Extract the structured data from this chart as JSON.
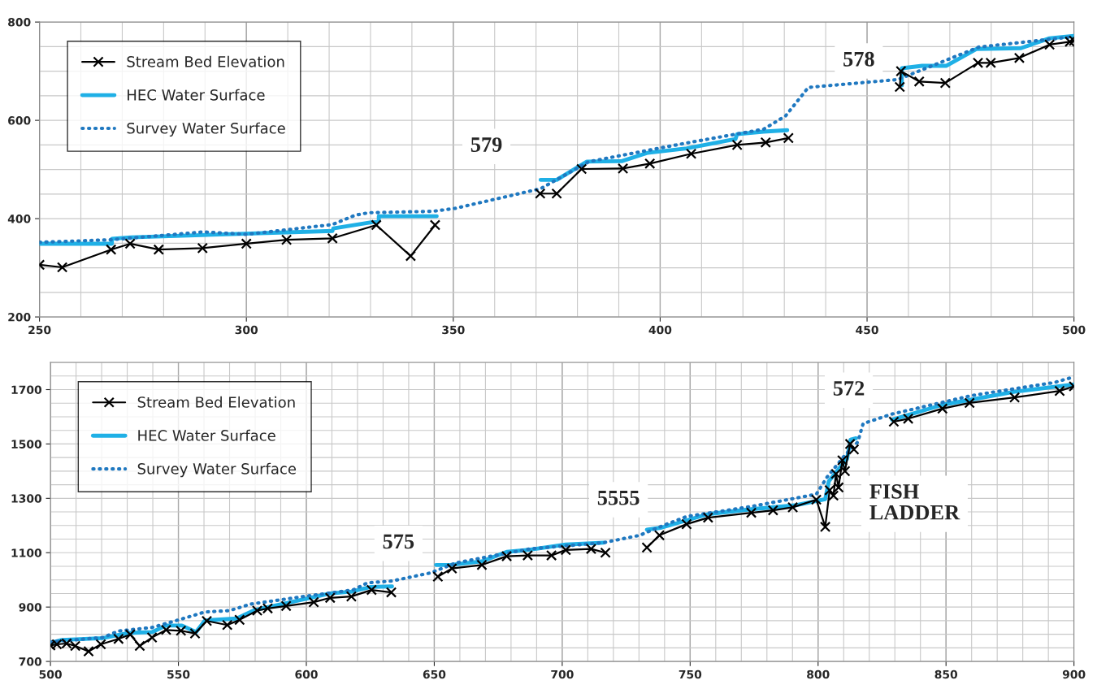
{
  "chart_data": [
    {
      "type": "line",
      "xlim": [
        250,
        500
      ],
      "xticks": [
        250,
        300,
        350,
        400,
        450,
        500
      ],
      "ylim": [
        200,
        800
      ],
      "yticks": [
        200,
        400,
        600,
        800
      ],
      "grid": true,
      "legend": "top left",
      "series": [
        {
          "name": "Stream Bed Elevation",
          "color": "#000000",
          "marker": "cross",
          "line_style": "solid",
          "x": [
            250,
            255.5,
            267.3,
            271.9,
            278.8,
            289.4,
            300,
            309.7,
            320.8,
            331.4,
            339.7,
            345.6,
            358,
            371,
            375,
            381,
            391,
            397.5,
            407.5,
            418.6,
            425.5,
            431,
            445,
            457.9,
            458.2,
            462.6,
            468.9,
            476.8,
            479.9,
            486.8,
            494.1,
            499,
            500
          ],
          "values": [
            306,
            301,
            337,
            349,
            337,
            340,
            349,
            357,
            360,
            387,
            324,
            387,
            null,
            451,
            451,
            501,
            502,
            512,
            532,
            550,
            555,
            564,
            null,
            668,
            700,
            679,
            676,
            717,
            717,
            727,
            754,
            760,
            762
          ]
        },
        {
          "name": "HEC Water Surface",
          "color": "#1fb0e6",
          "marker": "none",
          "line_style": "solid",
          "x": [
            250,
            267.5,
            267.5,
            272,
            320.8,
            321,
            332,
            332,
            346,
            358,
            371.1,
            375,
            382.3,
            390.7,
            397,
            406.4,
            418.2,
            418.6,
            425,
            430.7,
            445,
            458.4,
            458.4,
            463.3,
            469.2,
            476.4,
            487.2,
            494.1,
            500
          ],
          "values": [
            349,
            349,
            359,
            362,
            375,
            380,
            395,
            405,
            405,
            null,
            479,
            479,
            516,
            517,
            534,
            543,
            562,
            572,
            577,
            580,
            null,
            671,
            706,
            711,
            711,
            745,
            747,
            767,
            772
          ]
        },
        {
          "name": "Survey Water Surface",
          "color": "#1f78c0",
          "marker": "none",
          "line_style": "dotted",
          "x": [
            250,
            267.3,
            289.6,
            300,
            320.8,
            326.3,
            329.5,
            345.2,
            350.5,
            371.1,
            382.8,
            406.4,
            425,
            430.3,
            435.8,
            457.4,
            477,
            499.6
          ],
          "values": [
            352,
            357,
            373,
            368,
            388,
            407,
            412,
            415,
            421,
            461,
            516,
            554,
            582,
            609,
            667,
            683,
            749,
            770
          ]
        }
      ],
      "annotations": [
        "579",
        "578"
      ]
    },
    {
      "type": "line",
      "xlim": [
        500,
        900
      ],
      "xticks": [
        500,
        550,
        600,
        650,
        700,
        750,
        800,
        850,
        900
      ],
      "ylim": [
        700,
        1800
      ],
      "yticks": [
        700,
        900,
        1100,
        1300,
        1500,
        1700
      ],
      "grid": true,
      "legend": "top left",
      "series": [
        {
          "name": "Stream Bed Elevation",
          "color": "#000000",
          "marker": "cross",
          "line_style": "solid",
          "x": [
            500,
            502.5,
            506.3,
            509.7,
            514.9,
            519.7,
            526.6,
            531.2,
            534.9,
            539.7,
            545.2,
            551,
            556.5,
            561.1,
            569.1,
            573.9,
            580.8,
            584.9,
            592.1,
            602.9,
            609.3,
            617.6,
            625.5,
            633.2,
            642,
            651.4,
            656.9,
            668.6,
            678.3,
            686.5,
            695.8,
            701.4,
            711.3,
            716.9,
            725,
            733.1,
            738,
            748.6,
            757,
            773.9,
            782.4,
            790.1,
            799.3,
            802.8,
            804.5,
            806,
            807,
            808,
            809.5,
            810.5,
            812.5,
            814,
            822,
            829.6,
            835.2,
            848.6,
            859.2,
            876.8,
            894.4,
            900
          ],
          "values": [
            759,
            763,
            766,
            757,
            737,
            763,
            783,
            799,
            757,
            788,
            816,
            813,
            803,
            849,
            834,
            853,
            887,
            895,
            904,
            918,
            934,
            939,
            963,
            954,
            null,
            1012,
            1042,
            1055,
            1087,
            1090,
            1090,
            1110,
            1114,
            1100,
            null,
            1119,
            1164,
            1205,
            1229,
            1247,
            1256,
            1267,
            1295,
            1195,
            1330,
            1310,
            1390,
            1340,
            1440,
            1400,
            1500,
            1480,
            null,
            1582,
            1593,
            1630,
            1651,
            1671,
            1695,
            1712
          ]
        },
        {
          "name": "HEC Water Surface",
          "color": "#1fb0e6",
          "marker": "none",
          "line_style": "solid",
          "x": [
            500,
            504.5,
            520.4,
            530.7,
            539.7,
            545.2,
            551.4,
            556.9,
            560.4,
            572.8,
            579.7,
            592.1,
            609.3,
            617.6,
            625.2,
            633.5,
            642,
            650.7,
            656.2,
            668.6,
            678.3,
            687.2,
            701.4,
            716.2,
            725,
            733.1,
            738.7,
            757,
            773.9,
            790.8,
            802.8,
            804.2,
            807.7,
            811.3,
            812.7,
            814.8,
            822,
            828.9,
            848.6,
            876.8,
            900
          ],
          "values": [
            768,
            779,
            786,
            805,
            808,
            832,
            832,
            808,
            851,
            858,
            889,
            914,
            950,
            957,
            974,
            976,
            null,
            1055,
            1055,
            1068,
            1103,
            1111,
            1130,
            1137,
            null,
            1185,
            1192,
            1242,
            1260,
            1274,
            1297,
            1363,
            1404,
            1445,
            1516,
            1521,
            null,
            1589,
            1644,
            1692,
            1719
          ]
        },
        {
          "name": "Survey Water Surface",
          "color": "#1f78c0",
          "marker": "none",
          "line_style": "dotted",
          "x": [
            500,
            520.4,
            526.6,
            539.7,
            549.4,
            560.4,
            570,
            578.3,
            599,
            618.3,
            623.8,
            633.5,
            648.6,
            658.3,
            687.2,
            716.2,
            730.3,
            737.3,
            748.6,
            773.9,
            799.3,
            803.5,
            810.6,
            815.5,
            817.6,
            828.9,
            859.9,
            892.3,
            900
          ],
          "values": [
            772,
            788,
            812,
            825,
            851,
            882,
            887,
            911,
            939,
            963,
            989,
            996,
            1026,
            1062,
            1114,
            1137,
            1164,
            1192,
            1233,
            1270,
            1315,
            1378,
            1460,
            1507,
            1575,
            1610,
            1678,
            1726,
            1747
          ]
        }
      ],
      "annotations": [
        "575",
        "5555",
        "572",
        "FISH\nLADDER"
      ]
    }
  ]
}
